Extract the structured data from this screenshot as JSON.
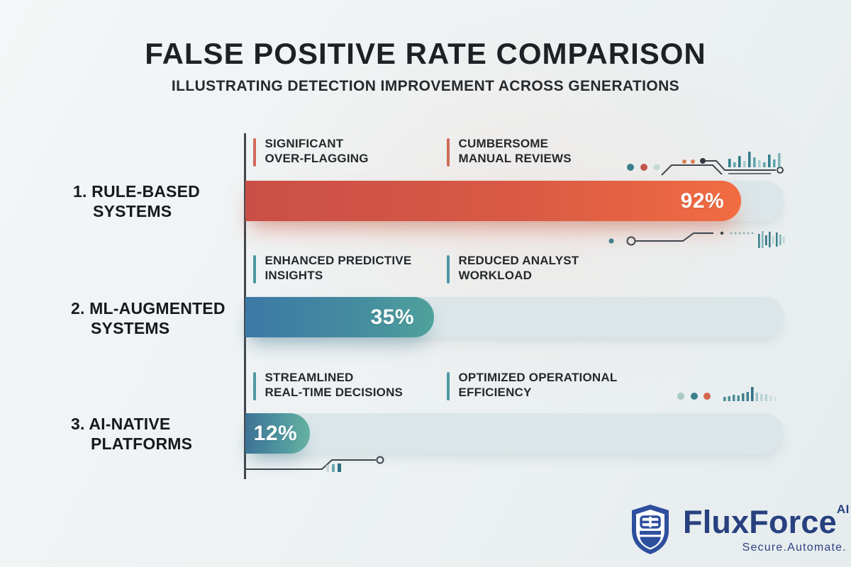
{
  "header": {
    "title": "FALSE POSITIVE RATE COMPARISON",
    "subtitle": "ILLUSTRATING DETECTION IMPROVEMENT ACROSS GENERATIONS"
  },
  "chart_data": {
    "type": "bar",
    "orientation": "horizontal",
    "title": "FALSE POSITIVE RATE COMPARISON",
    "subtitle": "ILLUSTRATING DETECTION IMPROVEMENT ACROSS GENERATIONS",
    "categories": [
      "1. RULE-BASED SYSTEMS",
      "2. ML-AUGMENTED SYSTEMS",
      "3. AI-NATIVE PLATFORMS"
    ],
    "values": [
      92,
      35,
      12
    ],
    "unit": "%",
    "xlim": [
      0,
      100
    ],
    "grid": false,
    "legend": "none",
    "annotations": [
      [
        "SIGNIFICANT OVER-FLAGGING",
        "CUMBERSOME MANUAL REVIEWS"
      ],
      [
        "ENHANCED PREDICTIVE INSIGHTS",
        "REDUCED ANALYST WORKLOAD"
      ],
      [
        "STREAMLINED REAL-TIME DECISIONS",
        "OPTIMIZED OPERATIONAL EFFICIENCY"
      ]
    ],
    "bar_gradients": [
      [
        "#c94f46",
        "#f26c42"
      ],
      [
        "#3c79a6",
        "#4fa29c"
      ],
      [
        "#3d7294",
        "#66b2a0"
      ]
    ],
    "track_color": "#dce6e9"
  },
  "rows": [
    {
      "label_line1": "1. RULE-BASED",
      "label_line2": "SYSTEMS",
      "value_label": "92%",
      "ann1_line1": "SIGNIFICANT",
      "ann1_line2": "OVER-FLAGGING",
      "ann2_line1": "CUMBERSOME",
      "ann2_line2": "MANUAL REVIEWS"
    },
    {
      "label_line1": "2. ML-AUGMENTED",
      "label_line2": "SYSTEMS",
      "value_label": "35%",
      "ann1_line1": "ENHANCED PREDICTIVE",
      "ann1_line2": "INSIGHTS",
      "ann2_line1": "REDUCED ANALYST",
      "ann2_line2": "WORKLOAD"
    },
    {
      "label_line1": "3. AI-NATIVE",
      "label_line2": "PLATFORMS",
      "value_label": "12%",
      "ann1_line1": "STREAMLINED",
      "ann1_line2": "REAL-TIME DECISIONS",
      "ann2_line1": "OPTIMIZED OPERATIONAL",
      "ann2_line2": "EFFICIENCY"
    }
  ],
  "branding": {
    "name": "FluxForce",
    "superscript": "AI",
    "tagline": "Secure.Automate.",
    "brand_color": "#2e4f9e",
    "text_color": "#27407f"
  },
  "colors": {
    "accent_red": "#cf6a58",
    "accent_teal": "#4b98a2",
    "axis": "#41474e",
    "text_dark": "#1d2126",
    "dot_teal": "#3c7f8c",
    "dot_red": "#c4564d",
    "dot_pale": "#c5d9d6",
    "dot_orange": "#d97f52"
  }
}
